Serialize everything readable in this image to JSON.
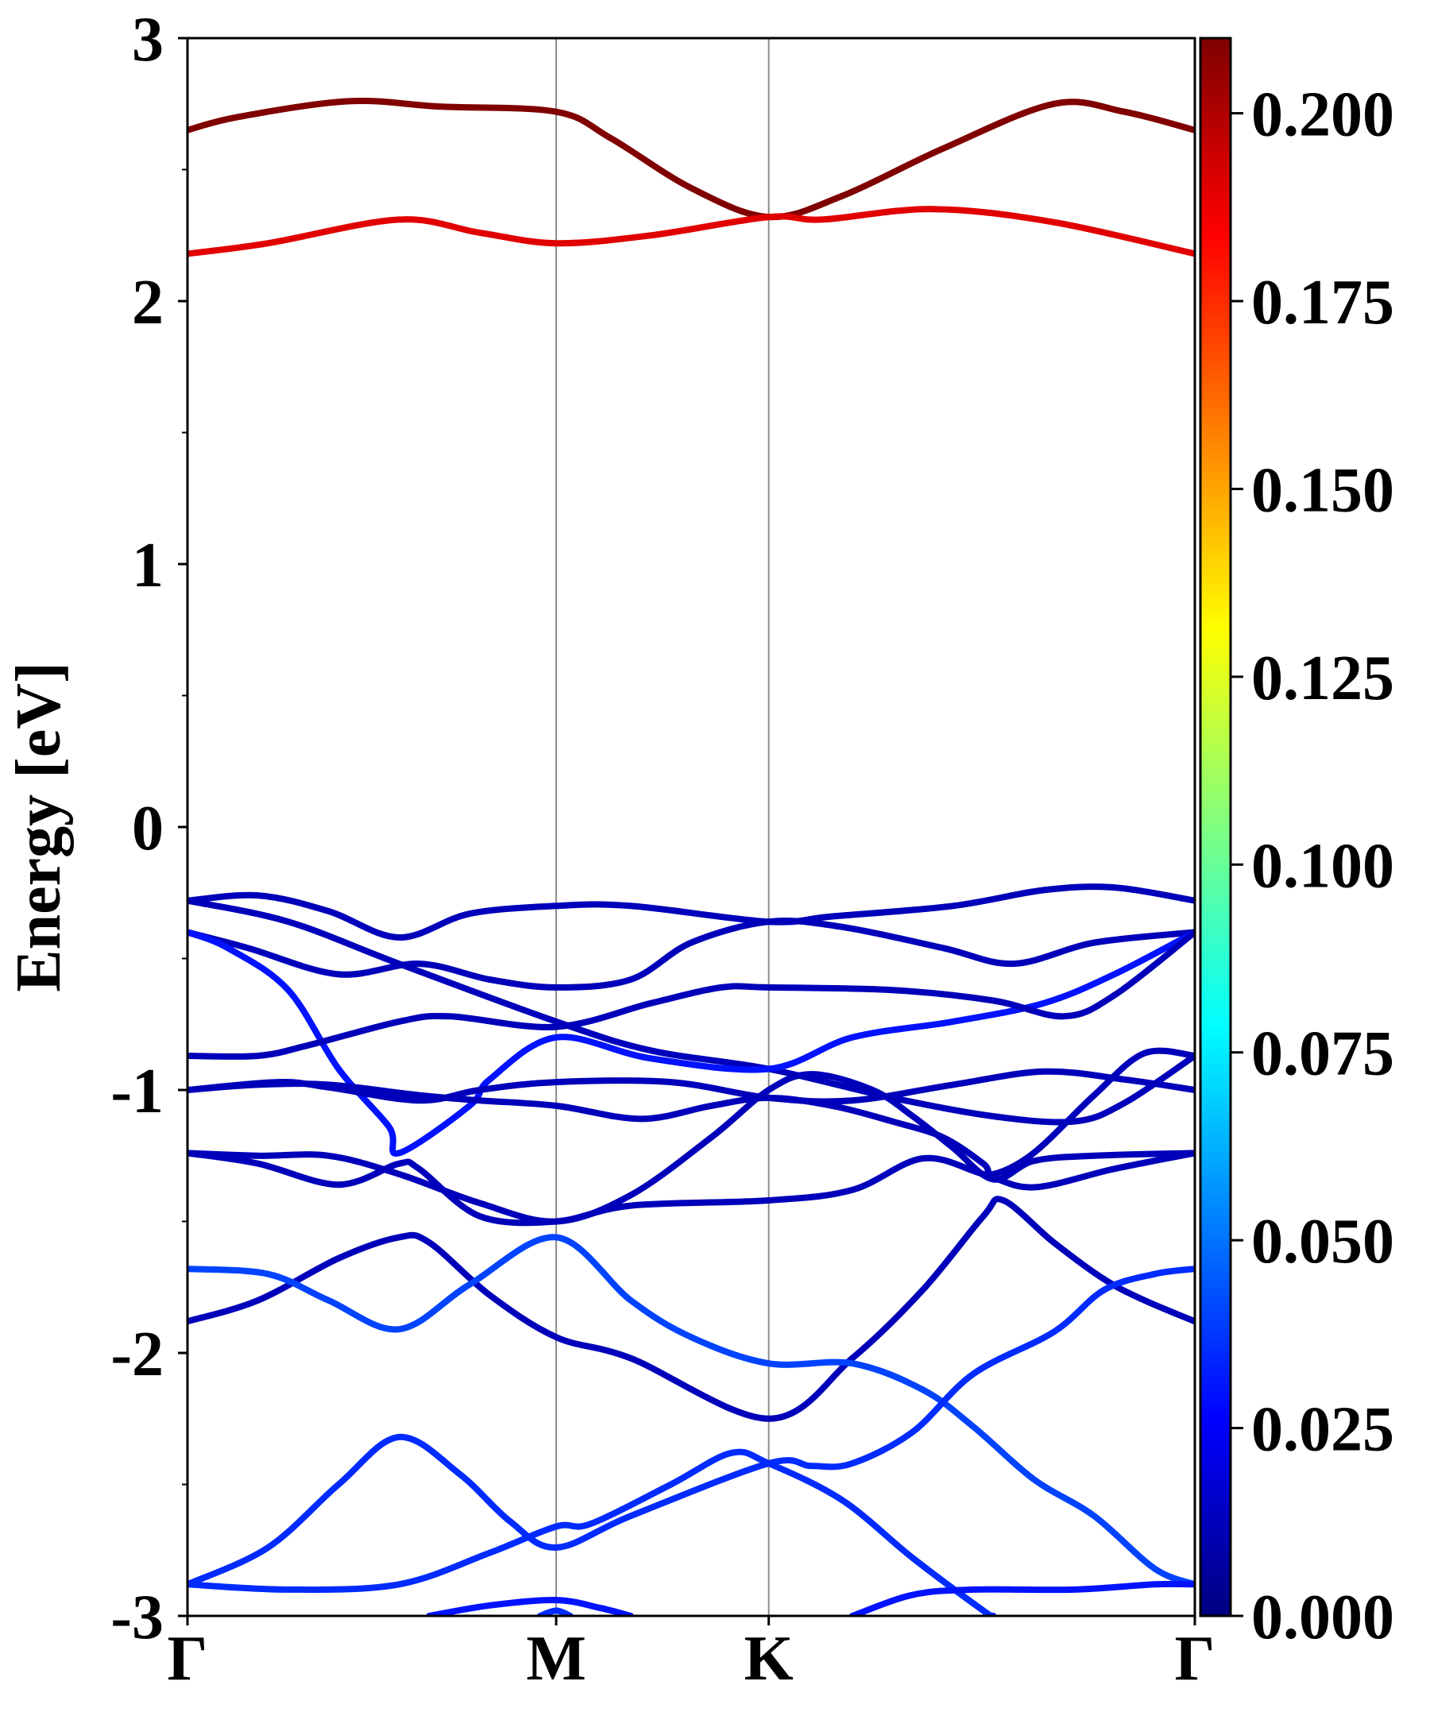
{
  "chart_data": {
    "type": "line",
    "title": "",
    "xlabel": "",
    "ylabel": "Energy [eV]",
    "ylim": [
      -3,
      3
    ],
    "yticks": [
      "3",
      "2",
      "1",
      "0",
      "-1",
      "-2",
      "-3"
    ],
    "y_minor_step": 0.5,
    "xlim": [
      0,
      1
    ],
    "x_ticks": [
      {
        "label": "Γ",
        "pos": 0.0
      },
      {
        "label": "M",
        "pos": 0.366
      },
      {
        "label": "K",
        "pos": 0.577
      },
      {
        "label": "Γ",
        "pos": 1.0
      }
    ],
    "grid": "vertical lines at high-symmetry points",
    "colorbar": {
      "colormap": "jet",
      "min": 0.0,
      "max": 0.21,
      "tick_labels": [
        "0.000",
        "0.025",
        "0.050",
        "0.075",
        "0.100",
        "0.125",
        "0.150",
        "0.175",
        "0.200"
      ],
      "tick_values": [
        0.0,
        0.025,
        0.05,
        0.075,
        0.1,
        0.125,
        0.15,
        0.175,
        0.2
      ]
    },
    "series": [
      {
        "weight": 0.21,
        "points": [
          [
            0,
            2.65
          ],
          [
            0.05,
            2.7
          ],
          [
            0.16,
            2.76
          ],
          [
            0.25,
            2.74
          ],
          [
            0.366,
            2.72
          ],
          [
            0.42,
            2.62
          ],
          [
            0.5,
            2.43
          ],
          [
            0.577,
            2.32
          ],
          [
            0.65,
            2.4
          ],
          [
            0.75,
            2.58
          ],
          [
            0.86,
            2.75
          ],
          [
            0.93,
            2.72
          ],
          [
            1,
            2.65
          ]
        ]
      },
      {
        "weight": 0.19,
        "points": [
          [
            0,
            2.18
          ],
          [
            0.08,
            2.22
          ],
          [
            0.21,
            2.31
          ],
          [
            0.29,
            2.26
          ],
          [
            0.366,
            2.22
          ],
          [
            0.46,
            2.25
          ],
          [
            0.577,
            2.32
          ],
          [
            0.63,
            2.31
          ],
          [
            0.74,
            2.35
          ],
          [
            0.86,
            2.3
          ],
          [
            1,
            2.18
          ]
        ]
      },
      {
        "weight": 0.012,
        "points": [
          [
            0,
            -0.28
          ],
          [
            0.07,
            -0.26
          ],
          [
            0.14,
            -0.32
          ],
          [
            0.21,
            -0.42
          ],
          [
            0.28,
            -0.33
          ],
          [
            0.366,
            -0.3
          ],
          [
            0.44,
            -0.3
          ],
          [
            0.577,
            -0.36
          ],
          [
            0.64,
            -0.34
          ],
          [
            0.76,
            -0.3
          ],
          [
            0.85,
            -0.24
          ],
          [
            0.92,
            -0.23
          ],
          [
            1,
            -0.28
          ]
        ]
      },
      {
        "weight": 0.012,
        "points": [
          [
            0,
            -0.28
          ],
          [
            0.1,
            -0.36
          ],
          [
            0.21,
            -0.52
          ],
          [
            0.366,
            -0.74
          ],
          [
            0.46,
            -0.85
          ],
          [
            0.577,
            -0.92
          ],
          [
            0.7,
            -1.03
          ],
          [
            0.8,
            -1.1
          ],
          [
            0.88,
            -1.12
          ],
          [
            0.93,
            -1.05
          ],
          [
            1,
            -0.87
          ]
        ]
      },
      {
        "weight": 0.012,
        "points": [
          [
            0,
            -0.4
          ],
          [
            0.06,
            -0.46
          ],
          [
            0.15,
            -0.56
          ],
          [
            0.23,
            -0.52
          ],
          [
            0.3,
            -0.58
          ],
          [
            0.366,
            -0.61
          ],
          [
            0.44,
            -0.58
          ],
          [
            0.5,
            -0.44
          ],
          [
            0.577,
            -0.36
          ],
          [
            0.65,
            -0.38
          ],
          [
            0.75,
            -0.46
          ],
          [
            0.82,
            -0.52
          ],
          [
            0.9,
            -0.44
          ],
          [
            1,
            -0.4
          ]
        ]
      },
      {
        "weight": 0.03,
        "points": [
          [
            0,
            -0.4
          ],
          [
            0.04,
            -0.46
          ],
          [
            0.1,
            -0.62
          ],
          [
            0.15,
            -0.92
          ],
          [
            0.2,
            -1.14
          ],
          [
            0.21,
            -1.24
          ],
          [
            0.28,
            -1.06
          ],
          [
            0.3,
            -0.96
          ],
          [
            0.366,
            -0.8
          ],
          [
            0.46,
            -0.88
          ],
          [
            0.577,
            -0.92
          ],
          [
            0.66,
            -0.8
          ],
          [
            0.76,
            -0.74
          ],
          [
            0.85,
            -0.67
          ],
          [
            0.92,
            -0.56
          ],
          [
            1,
            -0.4
          ]
        ]
      },
      {
        "weight": 0.012,
        "points": [
          [
            0,
            -0.87
          ],
          [
            0.07,
            -0.87
          ],
          [
            0.12,
            -0.83
          ],
          [
            0.21,
            -0.74
          ],
          [
            0.26,
            -0.72
          ],
          [
            0.366,
            -0.76
          ],
          [
            0.46,
            -0.67
          ],
          [
            0.53,
            -0.61
          ],
          [
            0.577,
            -0.61
          ],
          [
            0.7,
            -0.62
          ],
          [
            0.8,
            -0.66
          ],
          [
            0.87,
            -0.72
          ],
          [
            0.92,
            -0.64
          ],
          [
            1,
            -0.4
          ]
        ]
      },
      {
        "weight": 0.012,
        "points": [
          [
            0,
            -1.0
          ],
          [
            0.09,
            -0.97
          ],
          [
            0.14,
            -0.99
          ],
          [
            0.23,
            -1.04
          ],
          [
            0.29,
            -1.0
          ],
          [
            0.366,
            -0.97
          ],
          [
            0.48,
            -0.97
          ],
          [
            0.577,
            -1.03
          ],
          [
            0.66,
            -1.04
          ],
          [
            0.76,
            -0.98
          ],
          [
            0.85,
            -0.93
          ],
          [
            0.93,
            -0.96
          ],
          [
            1,
            -1.0
          ]
        ]
      },
      {
        "weight": 0.012,
        "points": [
          [
            0,
            -1.0
          ],
          [
            0.07,
            -0.98
          ],
          [
            0.14,
            -0.98
          ],
          [
            0.23,
            -1.02
          ],
          [
            0.29,
            -1.04
          ],
          [
            0.366,
            -1.06
          ],
          [
            0.45,
            -1.11
          ],
          [
            0.52,
            -1.06
          ],
          [
            0.577,
            -1.03
          ],
          [
            0.64,
            -1.06
          ],
          [
            0.7,
            -1.12
          ],
          [
            0.75,
            -1.18
          ],
          [
            0.79,
            -1.28
          ],
          [
            0.8,
            -1.32
          ],
          [
            0.84,
            -1.24
          ],
          [
            0.9,
            -1.02
          ],
          [
            0.95,
            -0.86
          ],
          [
            1,
            -0.87
          ]
        ]
      },
      {
        "weight": 0.012,
        "points": [
          [
            0,
            -1.24
          ],
          [
            0.07,
            -1.25
          ],
          [
            0.14,
            -1.25
          ],
          [
            0.21,
            -1.32
          ],
          [
            0.29,
            -1.43
          ],
          [
            0.366,
            -1.5
          ],
          [
            0.44,
            -1.4
          ],
          [
            0.52,
            -1.18
          ],
          [
            0.577,
            -1.0
          ],
          [
            0.62,
            -0.94
          ],
          [
            0.68,
            -1.0
          ],
          [
            0.72,
            -1.1
          ],
          [
            0.76,
            -1.22
          ],
          [
            0.8,
            -1.34
          ],
          [
            0.84,
            -1.27
          ],
          [
            0.9,
            -1.25
          ],
          [
            1,
            -1.24
          ]
        ]
      },
      {
        "weight": 0.012,
        "points": [
          [
            0,
            -1.24
          ],
          [
            0.07,
            -1.28
          ],
          [
            0.15,
            -1.36
          ],
          [
            0.21,
            -1.28
          ],
          [
            0.23,
            -1.3
          ],
          [
            0.29,
            -1.48
          ],
          [
            0.366,
            -1.5
          ],
          [
            0.44,
            -1.44
          ],
          [
            0.577,
            -1.42
          ],
          [
            0.66,
            -1.38
          ],
          [
            0.73,
            -1.26
          ],
          [
            0.79,
            -1.32
          ],
          [
            0.84,
            -1.37
          ],
          [
            0.92,
            -1.3
          ],
          [
            1,
            -1.24
          ]
        ]
      },
      {
        "weight": 0.012,
        "points": [
          [
            0,
            -1.88
          ],
          [
            0.07,
            -1.8
          ],
          [
            0.15,
            -1.64
          ],
          [
            0.21,
            -1.56
          ],
          [
            0.24,
            -1.58
          ],
          [
            0.3,
            -1.78
          ],
          [
            0.366,
            -1.94
          ],
          [
            0.44,
            -2.02
          ],
          [
            0.577,
            -2.25
          ],
          [
            0.66,
            -2.02
          ],
          [
            0.73,
            -1.76
          ],
          [
            0.79,
            -1.48
          ],
          [
            0.81,
            -1.42
          ],
          [
            0.86,
            -1.58
          ],
          [
            0.91,
            -1.72
          ],
          [
            0.95,
            -1.8
          ],
          [
            1,
            -1.88
          ]
        ]
      },
      {
        "weight": 0.04,
        "points": [
          [
            0,
            -1.68
          ],
          [
            0.08,
            -1.7
          ],
          [
            0.14,
            -1.8
          ],
          [
            0.21,
            -1.91
          ],
          [
            0.28,
            -1.74
          ],
          [
            0.366,
            -1.56
          ],
          [
            0.44,
            -1.8
          ],
          [
            0.5,
            -1.94
          ],
          [
            0.577,
            -2.04
          ],
          [
            0.66,
            -2.04
          ],
          [
            0.73,
            -2.14
          ],
          [
            0.78,
            -2.28
          ],
          [
            0.84,
            -2.48
          ],
          [
            0.9,
            -2.62
          ],
          [
            0.96,
            -2.82
          ],
          [
            1,
            -2.88
          ]
        ]
      },
      {
        "weight": 0.035,
        "points": [
          [
            0,
            -2.88
          ],
          [
            0.08,
            -2.74
          ],
          [
            0.15,
            -2.5
          ],
          [
            0.21,
            -2.32
          ],
          [
            0.27,
            -2.46
          ],
          [
            0.32,
            -2.64
          ],
          [
            0.366,
            -2.74
          ],
          [
            0.44,
            -2.62
          ],
          [
            0.577,
            -2.42
          ],
          [
            0.62,
            -2.43
          ],
          [
            0.66,
            -2.42
          ],
          [
            0.72,
            -2.3
          ],
          [
            0.78,
            -2.08
          ],
          [
            0.86,
            -1.92
          ],
          [
            0.91,
            -1.76
          ],
          [
            0.96,
            -1.7
          ],
          [
            1,
            -1.68
          ]
        ]
      },
      {
        "weight": 0.035,
        "points": [
          [
            0,
            -2.88
          ],
          [
            0.1,
            -2.9
          ],
          [
            0.21,
            -2.88
          ],
          [
            0.3,
            -2.76
          ],
          [
            0.366,
            -2.66
          ],
          [
            0.4,
            -2.65
          ],
          [
            0.48,
            -2.5
          ],
          [
            0.54,
            -2.38
          ],
          [
            0.577,
            -2.42
          ],
          [
            0.65,
            -2.56
          ],
          [
            0.72,
            -2.78
          ],
          [
            0.79,
            -2.98
          ],
          [
            0.8,
            -3.0
          ]
        ]
      },
      {
        "weight": 0.03,
        "points": [
          [
            0.24,
            -3.0
          ],
          [
            0.3,
            -2.96
          ],
          [
            0.366,
            -2.94
          ],
          [
            0.41,
            -2.97
          ],
          [
            0.44,
            -3.0
          ]
        ]
      },
      {
        "weight": 0.03,
        "points": [
          [
            0.66,
            -3.0
          ],
          [
            0.72,
            -2.92
          ],
          [
            0.78,
            -2.9
          ],
          [
            0.88,
            -2.9
          ],
          [
            0.96,
            -2.88
          ],
          [
            1,
            -2.88
          ]
        ]
      },
      {
        "weight": 0.035,
        "points": [
          [
            0.35,
            -3.0
          ],
          [
            0.366,
            -2.98
          ],
          [
            0.38,
            -3.0
          ]
        ]
      }
    ]
  }
}
